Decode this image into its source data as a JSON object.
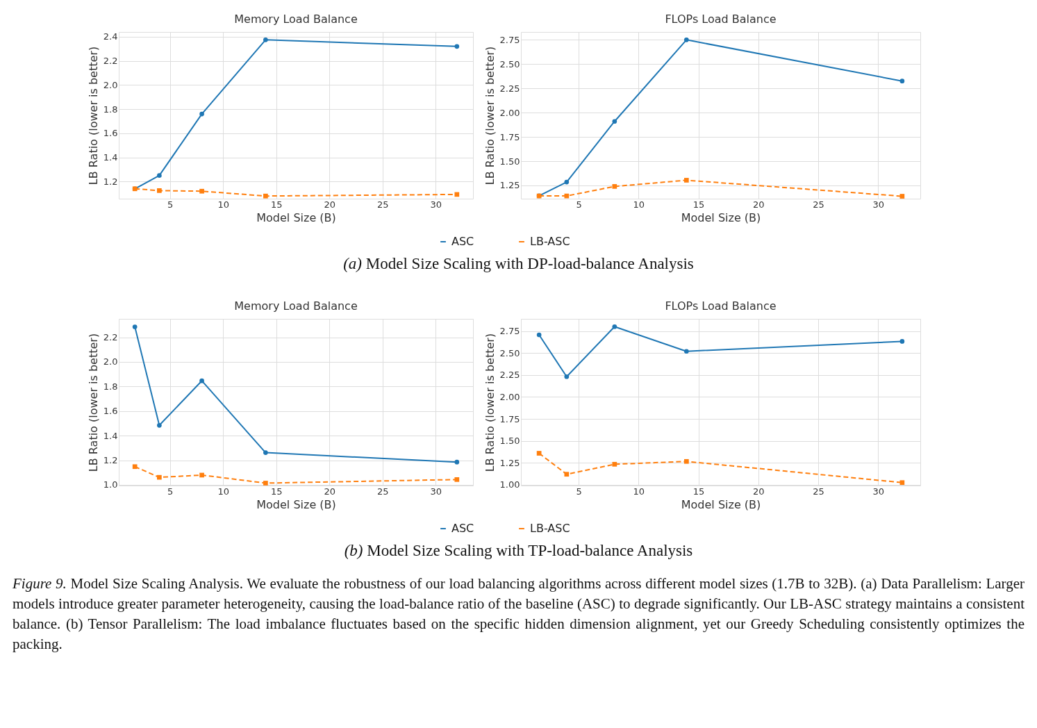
{
  "chart_data": [
    {
      "type": "line",
      "title": "Memory Load Balance",
      "xlabel": "Model Size (B)",
      "ylabel": "LB Ratio (lower is better)",
      "x": [
        1.7,
        4,
        8,
        14,
        32
      ],
      "xlim": [
        0.185,
        33.515
      ],
      "xticks": [
        5,
        10,
        15,
        20,
        25,
        30
      ],
      "ylim": [
        1.058,
        2.44
      ],
      "yticks": [
        1.2,
        1.4,
        1.6,
        1.8,
        {
          "value": 2,
          "label": "2.0"
        },
        2.2,
        2.4
      ],
      "grid": true,
      "legend": "bottom",
      "series": [
        {
          "name": "ASC",
          "color": "#1f77b4",
          "marker": "circle",
          "line_style": "solid",
          "values": [
            1.14,
            1.25,
            1.76,
            2.375,
            2.32
          ]
        },
        {
          "name": "LB-ASC",
          "color": "#ff7f0e",
          "marker": "square",
          "line_style": "dashed",
          "values": [
            1.14,
            1.125,
            1.12,
            1.08,
            1.093
          ]
        }
      ]
    },
    {
      "type": "line",
      "title": "FLOPs Load Balance",
      "xlabel": "Model Size (B)",
      "ylabel": "LB Ratio (lower is better)",
      "x": [
        1.7,
        4,
        8,
        14,
        32
      ],
      "xlim": [
        0.185,
        33.515
      ],
      "xticks": [
        5,
        10,
        15,
        20,
        25,
        30
      ],
      "ylim": [
        1.114,
        2.831
      ],
      "yticks": [
        1.25,
        {
          "value": 1.5,
          "label": "1.50"
        },
        1.75,
        {
          "value": 2,
          "label": "2.00"
        },
        2.25,
        {
          "value": 2.5,
          "label": "2.50"
        },
        2.75
      ],
      "grid": true,
      "legend": "bottom",
      "annotations": [
        "(a) Model Size Scaling with DP-load-balance Analysis"
      ],
      "series": [
        {
          "name": "ASC",
          "color": "#1f77b4",
          "marker": "circle",
          "line_style": "solid",
          "values": [
            1.144,
            1.285,
            1.91,
            2.75,
            2.325
          ]
        },
        {
          "name": "LB-ASC",
          "color": "#ff7f0e",
          "marker": "square",
          "line_style": "dashed",
          "values": [
            1.142,
            1.142,
            1.24,
            1.304,
            1.139
          ]
        }
      ]
    },
    {
      "type": "line",
      "title": "Memory Load Balance",
      "xlabel": "Model Size (B)",
      "ylabel": "LB Ratio (lower is better)",
      "x": [
        1.7,
        4,
        8,
        14,
        32
      ],
      "xlim": [
        0.185,
        33.515
      ],
      "xticks": [
        5,
        10,
        15,
        20,
        25,
        30
      ],
      "ylim": [
        0.994,
        2.35
      ],
      "yticks": [
        {
          "value": 1,
          "label": "1.0"
        },
        1.2,
        1.4,
        1.6,
        1.8,
        {
          "value": 2,
          "label": "2.0"
        },
        2.2
      ],
      "grid": true,
      "legend": "bottom",
      "series": [
        {
          "name": "ASC",
          "color": "#1f77b4",
          "marker": "circle",
          "line_style": "solid",
          "values": [
            2.285,
            1.484,
            1.846,
            1.262,
            1.185
          ]
        },
        {
          "name": "LB-ASC",
          "color": "#ff7f0e",
          "marker": "square",
          "line_style": "dashed",
          "values": [
            1.148,
            1.061,
            1.079,
            1.014,
            1.043
          ]
        }
      ]
    },
    {
      "type": "line",
      "title": "FLOPs Load Balance",
      "xlabel": "Model Size (B)",
      "ylabel": "LB Ratio (lower is better)",
      "x": [
        1.7,
        4,
        8,
        14,
        32
      ],
      "xlim": [
        0.185,
        33.515
      ],
      "xticks": [
        5,
        10,
        15,
        20,
        25,
        30
      ],
      "ylim": [
        0.99,
        2.89
      ],
      "yticks": [
        {
          "value": 1,
          "label": "1.00"
        },
        1.25,
        {
          "value": 1.5,
          "label": "1.50"
        },
        1.75,
        {
          "value": 2,
          "label": "2.00"
        },
        2.25,
        {
          "value": 2.5,
          "label": "2.50"
        },
        2.75
      ],
      "grid": true,
      "legend": "bottom",
      "annotations": [
        "(b) Model Size Scaling with TP-load-balance Analysis",
        "Figure 9. Model Size Scaling Analysis. We evaluate the robustness of our load balancing algorithms across different model sizes (1.7B to 32B). (a) Data Parallelism: Larger models introduce greater parameter heterogeneity, causing the load-balance ratio of the baseline (ASC) to degrade significantly. Our LB-ASC strategy maintains a consistent balance. (b) Tensor Parallelism: The load imbalance fluctuates based on the specific hidden dimension alignment, yet our Greedy Scheduling consistently optimizes the packing."
      ],
      "series": [
        {
          "name": "ASC",
          "color": "#1f77b4",
          "marker": "circle",
          "line_style": "solid",
          "values": [
            2.708,
            2.231,
            2.801,
            2.52,
            2.633
          ]
        },
        {
          "name": "LB-ASC",
          "color": "#ff7f0e",
          "marker": "square",
          "line_style": "dashed",
          "values": [
            1.358,
            1.119,
            1.233,
            1.265,
            1.024
          ]
        }
      ]
    }
  ]
}
